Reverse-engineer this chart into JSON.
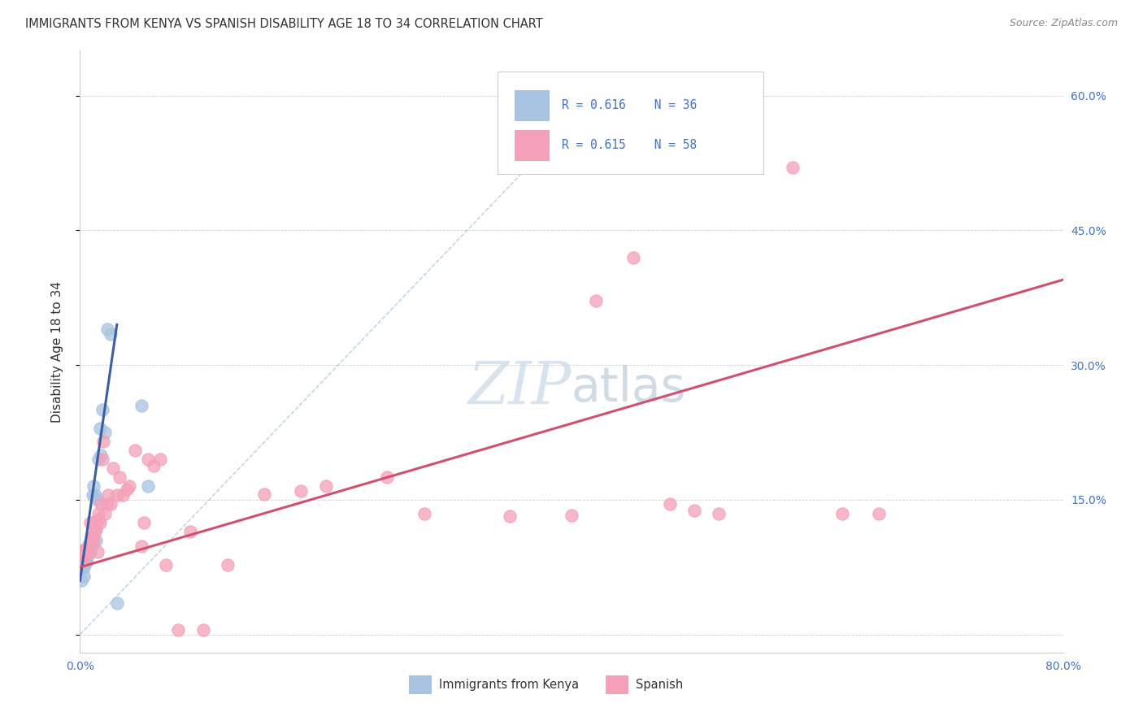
{
  "title": "IMMIGRANTS FROM KENYA VS SPANISH DISABILITY AGE 18 TO 34 CORRELATION CHART",
  "source": "Source: ZipAtlas.com",
  "ylabel": "Disability Age 18 to 34",
  "xlim": [
    0,
    0.8
  ],
  "ylim": [
    -0.02,
    0.65
  ],
  "watermark_zip": "ZIP",
  "watermark_atlas": "atlas",
  "legend_r1": "R = 0.616",
  "legend_n1": "N = 36",
  "legend_r2": "R = 0.615",
  "legend_n2": "N = 58",
  "kenya_color": "#a8c4e0",
  "spanish_color": "#f4a0b8",
  "kenya_line_color": "#3a5fa0",
  "spanish_line_color": "#d05070",
  "dashed_line_color": "#a8c4e0",
  "title_color": "#333333",
  "source_color": "#888888",
  "axis_label_color": "#4472c4",
  "legend_text_color": "#4472c4",
  "kenya_scatter_x": [
    0.001,
    0.002,
    0.002,
    0.003,
    0.003,
    0.003,
    0.004,
    0.004,
    0.005,
    0.005,
    0.005,
    0.006,
    0.006,
    0.007,
    0.007,
    0.007,
    0.008,
    0.008,
    0.009,
    0.009,
    0.01,
    0.01,
    0.011,
    0.012,
    0.013,
    0.014,
    0.015,
    0.016,
    0.017,
    0.018,
    0.02,
    0.022,
    0.025,
    0.03,
    0.05,
    0.055
  ],
  "kenya_scatter_y": [
    0.06,
    0.075,
    0.085,
    0.065,
    0.075,
    0.082,
    0.082,
    0.095,
    0.08,
    0.09,
    0.095,
    0.085,
    0.09,
    0.092,
    0.095,
    0.1,
    0.092,
    0.098,
    0.1,
    0.105,
    0.1,
    0.155,
    0.165,
    0.155,
    0.105,
    0.15,
    0.195,
    0.23,
    0.2,
    0.25,
    0.225,
    0.34,
    0.335,
    0.035,
    0.255,
    0.165
  ],
  "spanish_scatter_x": [
    0.001,
    0.002,
    0.003,
    0.004,
    0.005,
    0.006,
    0.007,
    0.008,
    0.009,
    0.01,
    0.01,
    0.011,
    0.012,
    0.013,
    0.014,
    0.015,
    0.015,
    0.016,
    0.017,
    0.018,
    0.019,
    0.02,
    0.022,
    0.023,
    0.025,
    0.027,
    0.03,
    0.032,
    0.035,
    0.038,
    0.04,
    0.045,
    0.05,
    0.052,
    0.055,
    0.06,
    0.065,
    0.07,
    0.08,
    0.09,
    0.1,
    0.12,
    0.15,
    0.18,
    0.2,
    0.25,
    0.28,
    0.35,
    0.4,
    0.42,
    0.45,
    0.48,
    0.5,
    0.52,
    0.55,
    0.58,
    0.62,
    0.65
  ],
  "spanish_scatter_y": [
    0.085,
    0.09,
    0.082,
    0.095,
    0.088,
    0.092,
    0.098,
    0.125,
    0.108,
    0.125,
    0.108,
    0.105,
    0.115,
    0.118,
    0.092,
    0.135,
    0.128,
    0.125,
    0.145,
    0.195,
    0.215,
    0.135,
    0.145,
    0.155,
    0.145,
    0.185,
    0.155,
    0.175,
    0.155,
    0.162,
    0.165,
    0.205,
    0.098,
    0.125,
    0.195,
    0.188,
    0.195,
    0.078,
    0.005,
    0.115,
    0.005,
    0.078,
    0.156,
    0.16,
    0.165,
    0.175,
    0.135,
    0.132,
    0.133,
    0.372,
    0.42,
    0.145,
    0.138,
    0.135,
    0.52,
    0.52,
    0.135,
    0.135
  ],
  "kenya_line_x": [
    0.0,
    0.03
  ],
  "kenya_line_y": [
    0.06,
    0.345
  ],
  "spanish_line_x": [
    0.0,
    0.8
  ],
  "spanish_line_y": [
    0.075,
    0.395
  ],
  "dashed_line_x": [
    0.0,
    0.42
  ],
  "dashed_line_y": [
    0.0,
    0.6
  ]
}
